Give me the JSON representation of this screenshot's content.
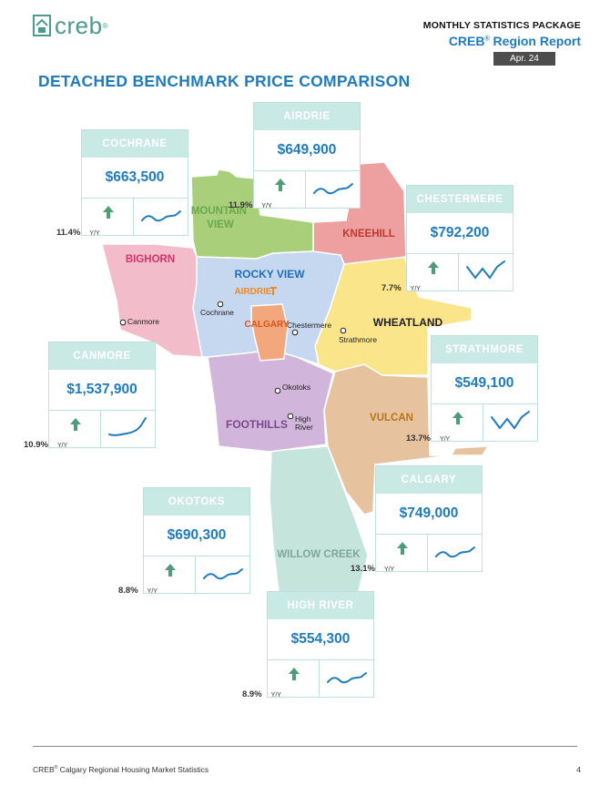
{
  "header": {
    "logo_text": "creb",
    "logo_reg": "®",
    "package_title": "MONTHLY STATISTICS PACKAGE",
    "report_title_prefix": "CREB",
    "report_title_reg": "®",
    "report_title_suffix": " Region Report",
    "date": "Apr. 24"
  },
  "page_title": "DETACHED BENCHMARK PRICE COMPARISON",
  "map": {
    "regions": [
      {
        "id": "mountain-view",
        "label": "MOUNTAIN\nVIEW",
        "color": "#a9cf7a",
        "label_color": "#6aa84f"
      },
      {
        "id": "kneehill",
        "label": "KNEEHILL",
        "color": "#ee9fa0",
        "label_color": "#c0392b"
      },
      {
        "id": "bighorn",
        "label": "BIGHORN",
        "color": "#f2bccb",
        "label_color": "#d6336c"
      },
      {
        "id": "rocky-view",
        "label": "ROCKY VIEW",
        "color": "#c6d8f0",
        "label_color": "#1f6fb8"
      },
      {
        "id": "wheatland",
        "label": "WHEATLAND",
        "color": "#fbe58b",
        "label_color": "#222222"
      },
      {
        "id": "calgary",
        "label": "CALGARY",
        "color": "#f2a77c",
        "label_color": "#d9531e"
      },
      {
        "id": "foothills",
        "label": "FOOTHILLS",
        "color": "#d2b5da",
        "label_color": "#7b4a8c"
      },
      {
        "id": "vulcan",
        "label": "VULCAN",
        "color": "#e6c39e",
        "label_color": "#b8741a"
      },
      {
        "id": "willow-creek",
        "label": "WILLOW CREEK",
        "color": "#c5e4dc",
        "label_color": "#7fa89b"
      }
    ],
    "towns": [
      {
        "name": "Airdrie",
        "display": "AIRDRIE",
        "color": "#f08a24"
      },
      {
        "name": "Cochrane",
        "display": "Cochrane",
        "color": "#222222"
      },
      {
        "name": "Canmore",
        "display": "Canmore",
        "color": "#222222"
      },
      {
        "name": "Chestermere",
        "display": "Chestermere",
        "color": "#222222"
      },
      {
        "name": "Strathmore",
        "display": "Strathmore",
        "color": "#222222"
      },
      {
        "name": "Okotoks",
        "display": "Okotoks",
        "color": "#222222"
      },
      {
        "name": "High River",
        "display": "High\nRiver",
        "color": "#222222"
      }
    ]
  },
  "cards": [
    {
      "id": "airdrie",
      "name": "AIRDRIE",
      "price": "$649,900",
      "change": "11.9%",
      "yy": "Y/Y",
      "trend": "wave-up"
    },
    {
      "id": "cochrane",
      "name": "COCHRANE",
      "price": "$663,500",
      "change": "11.4%",
      "yy": "Y/Y",
      "trend": "wave-up"
    },
    {
      "id": "chestermere",
      "name": "CHESTERMERE",
      "price": "$792,200",
      "change": "7.7%",
      "yy": "Y/Y",
      "trend": "zigzag"
    },
    {
      "id": "canmore",
      "name": "CANMORE",
      "price": "$1,537,900",
      "change": "10.9%",
      "yy": "Y/Y",
      "trend": "steep-up"
    },
    {
      "id": "strathmore",
      "name": "STRATHMORE",
      "price": "$549,100",
      "change": "13.7%",
      "yy": "Y/Y",
      "trend": "zigzag"
    },
    {
      "id": "okotoks",
      "name": "OKOTOKS",
      "price": "$690,300",
      "change": "8.8%",
      "yy": "Y/Y",
      "trend": "wave-up"
    },
    {
      "id": "calgary",
      "name": "CALGARY",
      "price": "$749,000",
      "change": "13.1%",
      "yy": "Y/Y",
      "trend": "wave-up"
    },
    {
      "id": "high-river",
      "name": "HIGH RIVER",
      "price": "$554,300",
      "change": "8.9%",
      "yy": "Y/Y",
      "trend": "wave-up"
    }
  ],
  "colors": {
    "accent": "#1f7bbf",
    "card_header": "#c9e9e5",
    "arrow": "#4f9d78"
  },
  "footer": {
    "text_prefix": "CREB",
    "text_reg": "®",
    "text_suffix": " Calgary Regional Housing Market Statistics",
    "page": "4"
  }
}
